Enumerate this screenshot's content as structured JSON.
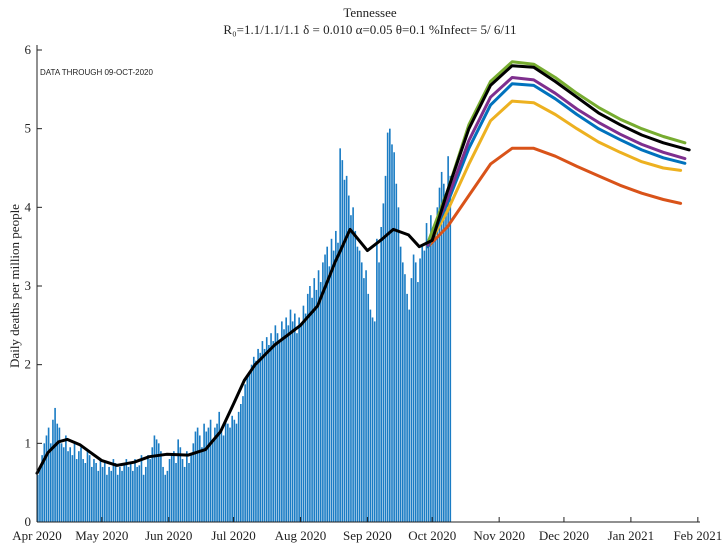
{
  "chart_data": {
    "type": "bar",
    "title": "Tennessee",
    "subtitle": "R₀=1.1/1.1/1.1  δ = 0.010  α=0.05  θ=0.1  %Infect= 5/ 6/11",
    "annotation": "DATA THROUGH 09-OCT-2020",
    "ylabel": "Daily deaths per million people",
    "xlim": [
      0,
      307
    ],
    "ylim": [
      0,
      6
    ],
    "xticks": [
      {
        "value": 0,
        "label": "Apr 2020"
      },
      {
        "value": 30,
        "label": "May 2020"
      },
      {
        "value": 61,
        "label": "Jun 2020"
      },
      {
        "value": 91,
        "label": "Jul 2020"
      },
      {
        "value": 122,
        "label": "Aug 2020"
      },
      {
        "value": 153,
        "label": "Sep 2020"
      },
      {
        "value": 183,
        "label": "Oct 2020"
      },
      {
        "value": 214,
        "label": "Nov 2020"
      },
      {
        "value": 244,
        "label": "Dec 2020"
      },
      {
        "value": 275,
        "label": "Jan 2021"
      },
      {
        "value": 306,
        "label": "Feb 2021"
      }
    ],
    "yticks": [
      0,
      1,
      2,
      3,
      4,
      5,
      6
    ],
    "color": "#1a7cc4",
    "x": [
      0,
      1,
      2,
      3,
      4,
      5,
      6,
      7,
      8,
      9,
      10,
      11,
      12,
      13,
      14,
      15,
      16,
      17,
      18,
      19,
      20,
      21,
      22,
      23,
      24,
      25,
      26,
      27,
      28,
      29,
      30,
      31,
      32,
      33,
      34,
      35,
      36,
      37,
      38,
      39,
      40,
      41,
      42,
      43,
      44,
      45,
      46,
      47,
      48,
      49,
      50,
      51,
      52,
      53,
      54,
      55,
      56,
      57,
      58,
      59,
      60,
      61,
      62,
      63,
      64,
      65,
      66,
      67,
      68,
      69,
      70,
      71,
      72,
      73,
      74,
      75,
      76,
      77,
      78,
      79,
      80,
      81,
      82,
      83,
      84,
      85,
      86,
      87,
      88,
      89,
      90,
      91,
      92,
      93,
      94,
      95,
      96,
      97,
      98,
      99,
      100,
      101,
      102,
      103,
      104,
      105,
      106,
      107,
      108,
      109,
      110,
      111,
      112,
      113,
      114,
      115,
      116,
      117,
      118,
      119,
      120,
      121,
      122,
      123,
      124,
      125,
      126,
      127,
      128,
      129,
      130,
      131,
      132,
      133,
      134,
      135,
      136,
      137,
      138,
      139,
      140,
      141,
      142,
      143,
      144,
      145,
      146,
      147,
      148,
      149,
      150,
      151,
      152,
      153,
      154,
      155,
      156,
      157,
      158,
      159,
      160,
      161,
      162,
      163,
      164,
      165,
      166,
      167,
      168,
      169,
      170,
      171,
      172,
      173,
      174,
      175,
      176,
      177,
      178,
      179,
      180,
      181,
      182,
      183,
      184,
      185,
      186,
      187,
      188,
      189,
      190,
      191
    ],
    "values": [
      0.6,
      0.7,
      0.85,
      1.0,
      1.1,
      1.2,
      1.0,
      1.3,
      1.45,
      1.25,
      1.2,
      1.0,
      0.95,
      1.1,
      0.9,
      0.95,
      0.85,
      1.0,
      0.8,
      0.9,
      0.95,
      0.8,
      0.75,
      0.9,
      0.85,
      0.7,
      0.8,
      0.75,
      0.65,
      0.8,
      0.7,
      0.75,
      0.6,
      0.7,
      0.65,
      0.8,
      0.75,
      0.6,
      0.7,
      0.65,
      0.72,
      0.8,
      0.7,
      0.75,
      0.65,
      0.8,
      0.7,
      0.72,
      0.85,
      0.6,
      0.7,
      0.85,
      0.8,
      0.95,
      1.1,
      1.05,
      1.0,
      0.9,
      0.7,
      0.6,
      0.65,
      0.8,
      0.85,
      0.9,
      0.75,
      1.05,
      0.95,
      0.8,
      0.7,
      0.9,
      0.75,
      0.85,
      1.0,
      1.15,
      1.2,
      1.1,
      0.95,
      1.25,
      1.15,
      1.2,
      1.3,
      1.05,
      1.2,
      1.25,
      1.4,
      1.15,
      1.1,
      1.3,
      1.25,
      1.2,
      1.35,
      1.3,
      1.25,
      1.4,
      1.5,
      1.6,
      1.75,
      1.85,
      1.9,
      2.0,
      2.1,
      2.05,
      2.2,
      2.15,
      2.3,
      2.2,
      2.35,
      2.25,
      2.4,
      2.3,
      2.5,
      2.4,
      2.3,
      2.55,
      2.45,
      2.6,
      2.5,
      2.7,
      2.55,
      2.65,
      2.4,
      2.6,
      2.5,
      2.75,
      2.65,
      2.9,
      3.0,
      2.85,
      3.1,
      2.95,
      3.2,
      3.05,
      3.3,
      3.4,
      3.5,
      3.25,
      3.6,
      3.45,
      3.7,
      3.55,
      4.75,
      4.6,
      4.35,
      4.4,
      4.15,
      3.9,
      4.0,
      3.7,
      3.5,
      3.45,
      3.3,
      3.1,
      3.2,
      2.9,
      2.7,
      2.6,
      2.55,
      3.6,
      3.3,
      3.75,
      4.05,
      4.4,
      4.95,
      5.0,
      4.8,
      4.7,
      4.3,
      4.0,
      3.5,
      3.3,
      3.15,
      2.9,
      2.7,
      3.1,
      3.4,
      3.3,
      3.05,
      3.35,
      3.5,
      3.45,
      3.8,
      3.6,
      3.9,
      3.75,
      3.7,
      4.0,
      4.25,
      4.45,
      4.3,
      4.1,
      4.65,
      4.4
    ],
    "lines": [
      {
        "color": "#d95319",
        "x": [
          181,
          190,
          200,
          210,
          220,
          230,
          240,
          250,
          260,
          270,
          280,
          290,
          298
        ],
        "values": [
          3.5,
          3.75,
          4.15,
          4.55,
          4.75,
          4.75,
          4.65,
          4.52,
          4.4,
          4.28,
          4.18,
          4.1,
          4.05
        ]
      },
      {
        "color": "#edb120",
        "x": [
          181,
          190,
          200,
          210,
          220,
          230,
          240,
          250,
          260,
          270,
          280,
          290,
          298
        ],
        "values": [
          3.5,
          3.95,
          4.55,
          5.1,
          5.35,
          5.33,
          5.18,
          5.0,
          4.83,
          4.7,
          4.58,
          4.5,
          4.47
        ]
      },
      {
        "color": "#0072bd",
        "x": [
          181,
          190,
          200,
          210,
          220,
          230,
          240,
          250,
          260,
          270,
          280,
          290,
          300
        ],
        "values": [
          3.5,
          4.05,
          4.75,
          5.3,
          5.57,
          5.55,
          5.38,
          5.18,
          5.0,
          4.86,
          4.73,
          4.63,
          4.56
        ]
      },
      {
        "color": "#7e2f8e",
        "x": [
          181,
          190,
          200,
          210,
          220,
          230,
          240,
          250,
          260,
          270,
          280,
          290,
          300
        ],
        "values": [
          3.52,
          4.1,
          4.85,
          5.4,
          5.65,
          5.62,
          5.45,
          5.25,
          5.08,
          4.93,
          4.8,
          4.7,
          4.62
        ]
      },
      {
        "color": "#77ac30",
        "x": [
          181,
          190,
          200,
          210,
          220,
          230,
          240,
          250,
          260,
          270,
          280,
          290,
          300
        ],
        "values": [
          3.55,
          4.2,
          5.05,
          5.6,
          5.85,
          5.82,
          5.65,
          5.45,
          5.27,
          5.12,
          5.0,
          4.9,
          4.82
        ]
      },
      {
        "color": "#000000",
        "x": [
          0,
          5,
          10,
          14,
          20,
          25,
          30,
          37,
          45,
          52,
          60,
          70,
          78,
          85,
          91,
          96,
          101,
          110,
          122,
          130,
          138,
          145,
          153,
          160,
          165,
          172,
          177,
          183,
          190,
          200,
          210,
          220,
          230,
          240,
          250,
          260,
          270,
          280,
          290,
          302
        ],
        "values": [
          0.62,
          0.88,
          1.02,
          1.05,
          0.98,
          0.88,
          0.78,
          0.72,
          0.76,
          0.83,
          0.86,
          0.85,
          0.92,
          1.15,
          1.5,
          1.8,
          2.0,
          2.25,
          2.5,
          2.75,
          3.3,
          3.72,
          3.45,
          3.6,
          3.72,
          3.65,
          3.5,
          3.58,
          4.2,
          5.0,
          5.55,
          5.8,
          5.78,
          5.6,
          5.4,
          5.2,
          5.05,
          4.92,
          4.82,
          4.73
        ]
      }
    ]
  }
}
